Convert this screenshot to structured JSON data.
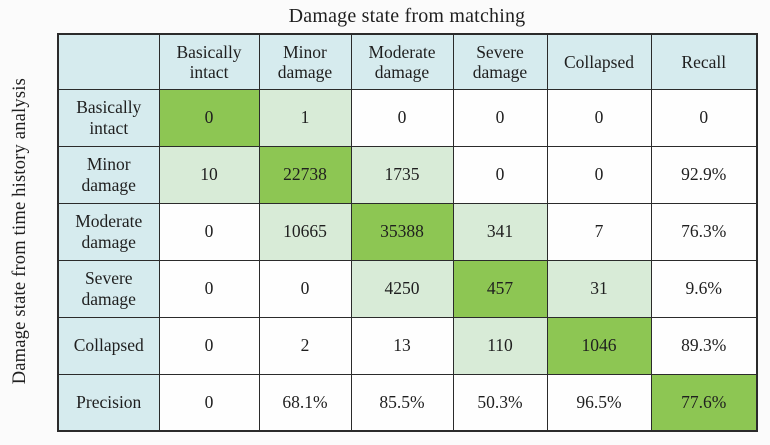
{
  "figure": {
    "title": "Damage state from matching",
    "y_axis_label": "Damage state from time history analysis"
  },
  "colors": {
    "page_bg": "#fbfbfb",
    "text": "#1f1f1f",
    "border": "#2b2b2b",
    "header_bg": "#d6ebee",
    "diagonal_bg": "#8dc653",
    "offdiagonal_bg": "#d8ebd7",
    "plain_bg": "#fefefe"
  },
  "table": {
    "corner_label": "",
    "column_headers": [
      "Basically intact",
      "Minor damage",
      "Moderate damage",
      "Severe damage",
      "Collapsed",
      "Recall"
    ],
    "rows": [
      {
        "label": "Basically intact",
        "values": [
          "0",
          "1",
          "0",
          "0",
          "0",
          "0"
        ],
        "bg": [
          "diag",
          "near",
          "plain",
          "plain",
          "plain",
          "plain"
        ]
      },
      {
        "label": "Minor damage",
        "values": [
          "10",
          "22738",
          "1735",
          "0",
          "0",
          "92.9%"
        ],
        "bg": [
          "near",
          "diag",
          "near",
          "plain",
          "plain",
          "plain"
        ]
      },
      {
        "label": "Moderate damage",
        "values": [
          "0",
          "10665",
          "35388",
          "341",
          "7",
          "76.3%"
        ],
        "bg": [
          "plain",
          "near",
          "diag",
          "near",
          "plain",
          "plain"
        ]
      },
      {
        "label": "Severe damage",
        "values": [
          "0",
          "0",
          "4250",
          "457",
          "31",
          "9.6%"
        ],
        "bg": [
          "plain",
          "plain",
          "near",
          "diag",
          "near",
          "plain"
        ]
      },
      {
        "label": "Collapsed",
        "values": [
          "0",
          "2",
          "13",
          "110",
          "1046",
          "89.3%"
        ],
        "bg": [
          "plain",
          "plain",
          "plain",
          "near",
          "diag",
          "plain"
        ]
      },
      {
        "label": "Precision",
        "values": [
          "0",
          "68.1%",
          "85.5%",
          "50.3%",
          "96.5%",
          "77.6%"
        ],
        "bg": [
          "plain",
          "plain",
          "plain",
          "plain",
          "plain",
          "diag"
        ]
      }
    ]
  },
  "chart_data": {
    "type": "heatmap",
    "title": "Damage state from matching",
    "xlabel": "Damage state from matching",
    "ylabel": "Damage state from time history analysis",
    "x_categories": [
      "Basically intact",
      "Minor damage",
      "Moderate damage",
      "Severe damage",
      "Collapsed"
    ],
    "y_categories": [
      "Basically intact",
      "Minor damage",
      "Moderate damage",
      "Severe damage",
      "Collapsed"
    ],
    "matrix": [
      [
        0,
        1,
        0,
        0,
        0
      ],
      [
        10,
        22738,
        1735,
        0,
        0
      ],
      [
        0,
        10665,
        35388,
        341,
        7
      ],
      [
        0,
        0,
        4250,
        457,
        31
      ],
      [
        0,
        2,
        13,
        110,
        1046
      ]
    ],
    "recall_by_row": [
      "0",
      "92.9%",
      "76.3%",
      "9.6%",
      "89.3%"
    ],
    "precision_by_column": [
      "0",
      "68.1%",
      "85.5%",
      "50.3%",
      "96.5%"
    ],
    "overall_accuracy": "77.6%",
    "legend_position": "none",
    "grid": true
  }
}
